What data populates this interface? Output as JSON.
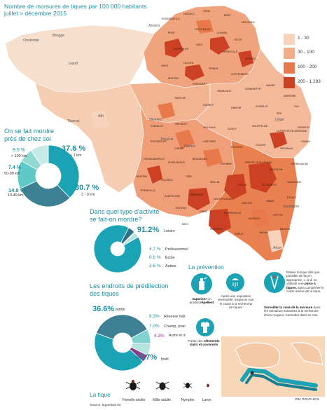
{
  "title_line1": "Nombre de morsures de tiques par 100 000 habitants",
  "title_line2": "juillet > décembre 2015",
  "legend": [
    {
      "label": "1 - 30",
      "color": "#f7d3bd"
    },
    {
      "label": "30 - 100",
      "color": "#f2ad86"
    },
    {
      "label": "100 - 200",
      "color": "#e8794b"
    },
    {
      "label": "200 - 1 293",
      "color": "#cc4024"
    }
  ],
  "cities": {
    "oostende": "Oostende",
    "brugge": "Brugge",
    "gand": "Gand",
    "ath": "Ath",
    "tournai": "Tournai",
    "nivelles": "Nivelles",
    "fleurus": "Fleurus",
    "namur": "Namur",
    "liege": "Liège",
    "anvers": "Anvers",
    "bastogne": "Bastogne",
    "arlon": "Arlon"
  },
  "communes": [
    "TESSENDERLO",
    "HASSELT",
    "GENK",
    "BREE",
    "MEEUWEN",
    "PEER",
    "HOUTHALEN",
    "LOMMEL",
    "RETIE",
    "KASTERLEE",
    "GEEL",
    "HERENTALS",
    "ZOERSEL",
    "DIEST",
    "LEUVEN",
    "TIENEN",
    "KORTENBERG",
    "BERTEM",
    "RIXENSART",
    "GEMBLOUX",
    "SOMBREFFE",
    "WAVRE",
    "ANDENNE",
    "HUY",
    "MARCHE",
    "DURBUY",
    "HAMOIR",
    "AYWAILLE",
    "SPA",
    "STAVELOT",
    "MALMEDY",
    "VIELSALM",
    "GOUVY",
    "HOUFFALIZE",
    "LA ROCHE-EN-ARDENNE",
    "RENDEUX",
    "ROCHEFORT",
    "DINANT",
    "HASTIERE",
    "DOISCHE",
    "COUVIN",
    "VIROINVAL",
    "CHIMAY",
    "FROIDCHAPELLE",
    "SIVRY-RANCE",
    "BEAURAING",
    "GEDINNE",
    "VRESSE-SUR-SEMOIS",
    "BOUILLON",
    "HERBEUMONT",
    "BERTRIX",
    "PALISEUL",
    "LIBIN",
    "WELLIN",
    "TELLIN",
    "ST-HUBERT",
    "NASSOGNE",
    "TENNEVILLE",
    "SAINTE-ODE",
    "LIBRAMONT",
    "NEUFCHATEAU",
    "LEGLISE",
    "HABAY",
    "ETALLE",
    "TINTIGNY",
    "CHINY",
    "FLORENVILLE",
    "MUSSON",
    "VIRTON",
    "MEIX",
    "ROUVROY",
    "THEUX",
    "JALHAY",
    "BAELEN",
    "EUPEN",
    "OLNE",
    "SPRIMONT",
    "ESNEUX",
    "OUFFET",
    "CLAVIER",
    "ANTHISNES",
    "COMBLAIN",
    "FERRIERES",
    "MANHAY",
    "EREZEE",
    "HOTTON",
    "SOMME-LEUZE",
    "HAVELANGE",
    "CINEY",
    "HAMOIS",
    "OHEY",
    "GESVES",
    "ASSESSE",
    "YVOIR",
    "ANHEE",
    "ONHAYE",
    "FLORENNES",
    "PHILIPPEVILLE",
    "CERFONTAINE",
    "WALCOURT",
    "METTET",
    "FOSSES",
    "PROFONDEVILLE",
    "FLOREFFE",
    "JEMEPPE",
    "SAMBREVILLE",
    "AISEAU",
    "FARCIENNES",
    "CHATELET",
    "GERPINNES",
    "HAM-SUR-HEURE",
    "THUIN",
    "LOBBES",
    "MERBES",
    "ERQUELINNES",
    "BEAUMONT",
    "MOMIGNIES",
    "LA HULPE",
    "OVERIJSE",
    "HOEILAART",
    "TERVUREN",
    "GENAPPE",
    "CHASTRE",
    "MONT-ST-GUIBERT",
    "COURT-ST-ETIENNE",
    "VILLERS-LA-VILLE",
    "OTTIGNIES",
    "CHAUMONT",
    "GREZ-DOICEAU",
    "BEAUVECHAIN",
    "HOEGAARDEN",
    "LANDEN",
    "HANNUT",
    "BRAIVES",
    "WANZE",
    "VERLAINE",
    "AMAY",
    "ENGIS",
    "FLEMALLE",
    "SERAING",
    "NEUPRE",
    "TROOZ",
    "CHAUDFONTAINE",
    "SOUMAGNE",
    "HERVE",
    "AUBEL",
    "PLOMBIERES",
    "THIMISTER",
    "WELKENRAEDT",
    "LONTZEN",
    "RAEREN",
    "BUTGENBACH",
    "BULLANGE",
    "AMEL",
    "SANKT-VITH",
    "BURG-REULAND",
    "WAIMES",
    "TROIS-PONTS",
    "LIERNEUX",
    "BASTOGNE",
    "BERTOGNE",
    "FAUVILLERS",
    "VAUX-SUR-SURE",
    "MARTELANGE",
    "ATTERT",
    "ARLON",
    "MESSANCY",
    "AUBANGE"
  ],
  "bite_location": {
    "heading_line1": "On se fait mordre",
    "heading_line2": "près de chez soi",
    "segments": [
      {
        "pct": "37.6 %",
        "label": "< 1 km",
        "value": 37.6,
        "color": "#1aa3b5"
      },
      {
        "pct": "30.7 %",
        "label": "2 - 9 km",
        "value": 30.7,
        "color": "#3d7f93"
      },
      {
        "pct": "14.8 %",
        "label": "10-49 km",
        "value": 14.8,
        "color": "#5fc9c7"
      },
      {
        "pct": "7.4 %",
        "label": "50-99 km",
        "value": 7.4,
        "color": "#93d9d3"
      },
      {
        "pct": "9.5 %",
        "label": "> 100 km",
        "value": 9.5,
        "color": "#c6ebe6"
      }
    ]
  },
  "activity": {
    "heading_line1": "Dans quel type d'activité",
    "heading_line2": "se fait-on mordre?",
    "segments": [
      {
        "pct": "91.2%",
        "label": "Loisirs",
        "value": 91.2,
        "color": "#1aa3b5"
      },
      {
        "pct": "4.7 %",
        "label": "Professionnel",
        "value": 4.7,
        "color": "#2f6f85"
      },
      {
        "pct": "0.6 %",
        "label": "École",
        "value": 0.6,
        "color": "#7fd2cd"
      },
      {
        "pct": "3.6 %",
        "label": "Autres",
        "value": 3.6,
        "color": "#b5e3df"
      }
    ]
  },
  "places": {
    "heading_line1": "Les endroits de prédilection",
    "heading_line2": "des tiques",
    "segments": [
      {
        "pct": "36.6%",
        "label": "Jardin",
        "value": 36.6,
        "color": "#3d7f93"
      },
      {
        "pct": "8.3%",
        "label": "Réserve naturelle",
        "value": 8.3,
        "color": "#7fd2cd"
      },
      {
        "pct": "7.0%",
        "label": "Champ, prairie",
        "value": 7.0,
        "color": "#b5e3df"
      },
      {
        "pct": "4.3%",
        "label": "Autre et inconnu",
        "value": 4.3,
        "color": "#8b3b8f"
      },
      {
        "pct": "43.7%",
        "label": "forêt",
        "value": 43.7,
        "color": "#1aa3b5"
      }
    ]
  },
  "prevention": {
    "title": "La prévention",
    "items": [
      {
        "pre": "",
        "bold": "Vaporiser",
        "post": " un produit ",
        "bold2": "répellent"
      },
      {
        "pre": "Après une exposition éventuelle, inspecter tout le corps à la recherche de tiques.",
        "bold": "",
        "post": "",
        "bold2": ""
      },
      {
        "pre": "Porter des ",
        "bold": "vêtements",
        "post": " ",
        "bold2": "clairs et couvrants"
      }
    ],
    "remove_text": "Retirer la tique dès que possible de façon appropriée, c.-à-d. en utilisant une",
    "remove_bold": "pince à tiques,",
    "remove_text2": "sans comprimer le corps arrière de la tique.",
    "watch_bold": "Surveiller la zone de la morsure",
    "watch_text": "dans les semaines suivantes à la recherche d'une rougeur. Consulter dans ce cas."
  },
  "tick": {
    "title": "La tique",
    "stages": [
      "Femelle adulte",
      "Mâle adulte",
      "Nymphe",
      "Larve"
    ]
  },
  "source": "Source: tiquesNet.be",
  "credit": "IPM GRAPHICS"
}
